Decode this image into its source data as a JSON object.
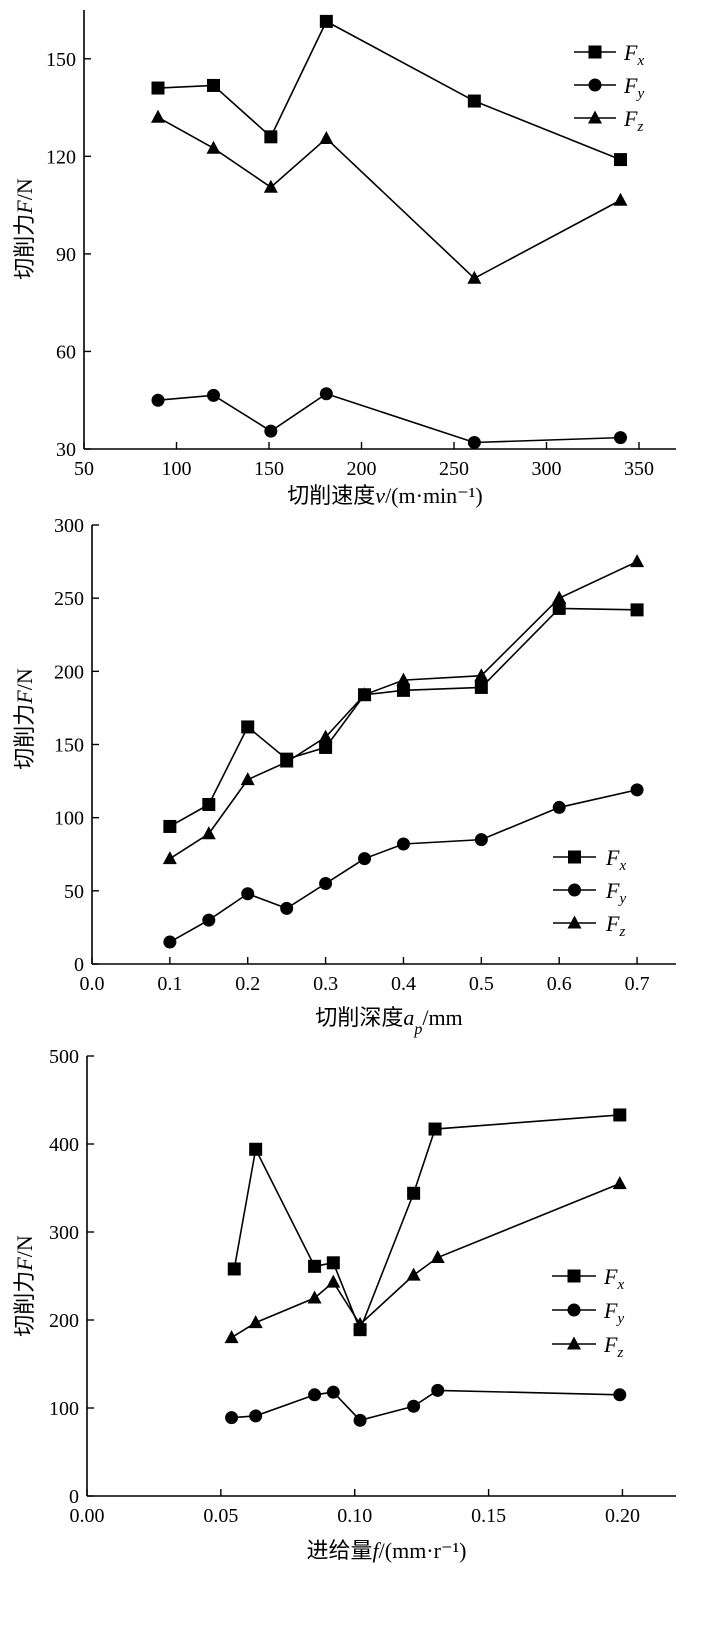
{
  "chart_data": [
    {
      "type": "line",
      "xlabel": "切削速度v/(m·min⁻¹)",
      "ylabel": "切削力F/N",
      "xlim": [
        50,
        370
      ],
      "ylim": [
        30,
        165
      ],
      "xticks": [
        50,
        100,
        150,
        200,
        250,
        300,
        350
      ],
      "yticks": [
        30,
        60,
        90,
        120,
        150
      ],
      "legend_position": "top-right",
      "series": [
        {
          "name": "Fx",
          "marker": "square",
          "x": [
            90,
            120,
            151,
            181,
            261,
            340
          ],
          "y": [
            141,
            141.8,
            126,
            161.5,
            137,
            119
          ]
        },
        {
          "name": "Fy",
          "marker": "circle",
          "x": [
            90,
            120,
            151,
            181,
            261,
            340
          ],
          "y": [
            45,
            46.5,
            35.5,
            47,
            32,
            33.5
          ]
        },
        {
          "name": "Fz",
          "marker": "triangle",
          "x": [
            90,
            120,
            151,
            181,
            261,
            340
          ],
          "y": [
            132,
            122.5,
            110.5,
            125.5,
            82.5,
            106.5
          ]
        }
      ]
    },
    {
      "type": "line",
      "xlabel": "切削深度a_p/mm",
      "ylabel": "切削力F/N",
      "xlim": [
        0,
        0.75
      ],
      "ylim": [
        0,
        300
      ],
      "xticks": [
        0.0,
        0.1,
        0.2,
        0.3,
        0.4,
        0.5,
        0.6,
        0.7
      ],
      "yticks": [
        0,
        50,
        100,
        150,
        200,
        250,
        300
      ],
      "legend_position": "bottom-right",
      "series": [
        {
          "name": "Fx",
          "marker": "square",
          "x": [
            0.1,
            0.15,
            0.2,
            0.25,
            0.3,
            0.35,
            0.4,
            0.5,
            0.6,
            0.7
          ],
          "y": [
            94,
            109,
            162,
            140,
            148,
            184,
            187,
            189,
            243,
            242
          ]
        },
        {
          "name": "Fy",
          "marker": "circle",
          "x": [
            0.1,
            0.15,
            0.2,
            0.25,
            0.3,
            0.35,
            0.4,
            0.5,
            0.6,
            0.7
          ],
          "y": [
            15,
            30,
            48,
            38,
            55,
            72,
            82,
            85,
            107,
            119
          ]
        },
        {
          "name": "Fz",
          "marker": "triangle",
          "x": [
            0.1,
            0.15,
            0.2,
            0.25,
            0.3,
            0.35,
            0.4,
            0.5,
            0.6,
            0.7
          ],
          "y": [
            72,
            89,
            126,
            138,
            155,
            184,
            194,
            197,
            250,
            275
          ]
        }
      ]
    },
    {
      "type": "line",
      "xlabel": "进给量f/(mm·r⁻¹)",
      "ylabel": "切削力F/N",
      "xlim": [
        0,
        0.22
      ],
      "ylim": [
        0,
        500
      ],
      "xticks": [
        0.0,
        0.05,
        0.1,
        0.15,
        0.2
      ],
      "yticks": [
        0,
        100,
        200,
        300,
        400,
        500
      ],
      "legend_position": "right",
      "series": [
        {
          "name": "Fx",
          "marker": "square",
          "x": [
            0.055,
            0.063,
            0.085,
            0.092,
            0.102,
            0.122,
            0.13,
            0.199
          ],
          "y": [
            258,
            394,
            261,
            265,
            189,
            344,
            417,
            433
          ]
        },
        {
          "name": "Fy",
          "marker": "circle",
          "x": [
            0.054,
            0.063,
            0.085,
            0.092,
            0.102,
            0.122,
            0.131,
            0.199
          ],
          "y": [
            89,
            91,
            115,
            118,
            86,
            102,
            120,
            115
          ]
        },
        {
          "name": "Fz",
          "marker": "triangle",
          "x": [
            0.054,
            0.063,
            0.085,
            0.092,
            0.102,
            0.122,
            0.131,
            0.199
          ],
          "y": [
            180,
            197,
            225,
            243,
            195,
            251,
            271,
            355
          ]
        }
      ]
    }
  ],
  "legend_names": {
    "Fx": {
      "base": "F",
      "sub": "x"
    },
    "Fy": {
      "base": "F",
      "sub": "y"
    },
    "Fz": {
      "base": "F",
      "sub": "z"
    }
  }
}
